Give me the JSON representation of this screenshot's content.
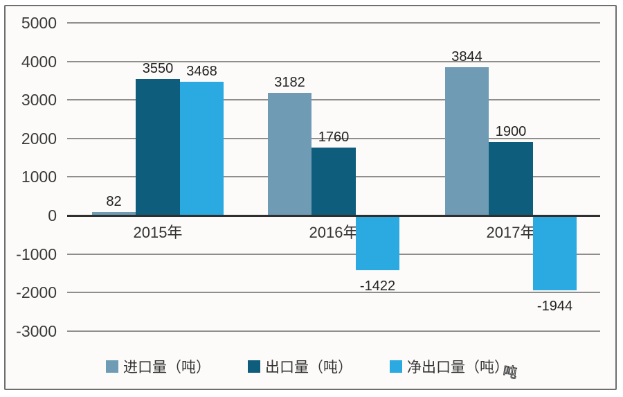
{
  "chart_data": {
    "type": "bar",
    "title": "",
    "xlabel": "",
    "ylabel": "",
    "categories": [
      "2015年",
      "2016年",
      "2017年"
    ],
    "series": [
      {
        "name": "进口量（吨）",
        "color": "#6F9CB4",
        "values": [
          82,
          3182,
          3844
        ]
      },
      {
        "name": "出口量（吨）",
        "color": "#0E5D7D",
        "values": [
          3550,
          1760,
          1900
        ]
      },
      {
        "name": "净出口量（吨）",
        "color": "#2BA9E1",
        "values": [
          3468,
          -1422,
          -1944
        ]
      }
    ],
    "data_labels": {
      "2015年": [
        82,
        3550,
        3468
      ],
      "2016年": [
        3182,
        1760,
        -1422
      ],
      "2017年": [
        3844,
        1900,
        -1944
      ]
    },
    "ylim": [
      -3000,
      5000
    ],
    "yticks": [
      5000,
      4000,
      3000,
      2000,
      1000,
      0,
      -1000,
      -2000,
      -3000
    ],
    "grid": true,
    "legend_position": "bottom"
  },
  "colors": {
    "grid": "#7a7a7a",
    "zero_line": "#2f2f2f",
    "tick_text": "#3a3a3a",
    "frame_border": "#6e6e6e",
    "background": "#fcfbf9"
  },
  "watermark_glyph": "吨"
}
